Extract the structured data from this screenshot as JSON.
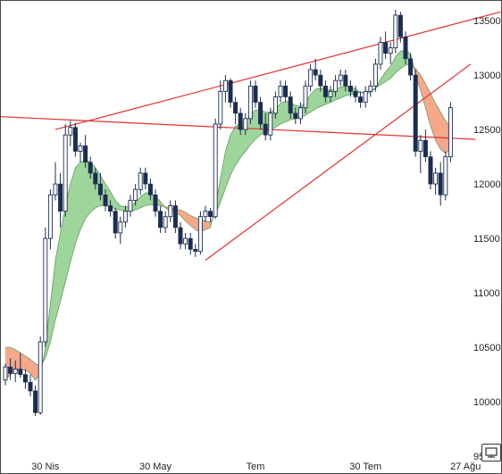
{
  "chart_data": {
    "type": "candlestick",
    "title": "",
    "xlabel": "",
    "ylabel": "",
    "ylim": [
      9460,
      13640
    ],
    "y_ticks": [
      9500,
      10000,
      10500,
      11000,
      11500,
      12000,
      12500,
      13000,
      13500
    ],
    "x_tick_labels": [
      {
        "label": "30 Nis",
        "index": 8
      },
      {
        "label": "30 May",
        "index": 30
      },
      {
        "label": "Tem",
        "index": 50
      },
      {
        "label": "30 Tem",
        "index": 72
      },
      {
        "label": "27 Ağu",
        "index": 92
      }
    ],
    "colors": {
      "candle": "#1c2d52",
      "band_up": "#9ed59a",
      "band_down": "#f6a98a",
      "band_line": "#3f7f3f",
      "trendline": "#e23030"
    },
    "candles": [
      [
        10200,
        10350,
        10150,
        10320
      ],
      [
        10320,
        10400,
        10200,
        10260
      ],
      [
        10260,
        10380,
        10180,
        10300
      ],
      [
        10300,
        10450,
        10220,
        10250
      ],
      [
        10250,
        10300,
        10120,
        10180
      ],
      [
        10180,
        10250,
        10050,
        10100
      ],
      [
        10100,
        10150,
        9870,
        9900
      ],
      [
        9900,
        10600,
        9880,
        10550
      ],
      [
        10550,
        11600,
        10500,
        11500
      ],
      [
        11500,
        11950,
        11400,
        11900
      ],
      [
        11900,
        12200,
        11850,
        12000
      ],
      [
        12000,
        12100,
        11600,
        11750
      ],
      [
        11750,
        12550,
        11700,
        12450
      ],
      [
        12450,
        12580,
        12350,
        12520
      ],
      [
        12520,
        12560,
        12250,
        12300
      ],
      [
        12300,
        12380,
        12200,
        12350
      ],
      [
        12350,
        12450,
        12150,
        12200
      ],
      [
        12200,
        12250,
        12050,
        12100
      ],
      [
        12100,
        12150,
        11950,
        12000
      ],
      [
        12000,
        12100,
        11850,
        11900
      ],
      [
        11900,
        11950,
        11750,
        11800
      ],
      [
        11800,
        11850,
        11700,
        11750
      ],
      [
        11750,
        11780,
        11500,
        11550
      ],
      [
        11550,
        11700,
        11450,
        11650
      ],
      [
        11650,
        11800,
        11600,
        11750
      ],
      [
        11750,
        11900,
        11700,
        11850
      ],
      [
        11850,
        12000,
        11800,
        11950
      ],
      [
        11950,
        12150,
        11900,
        12100
      ],
      [
        12100,
        12150,
        11950,
        12000
      ],
      [
        12000,
        12050,
        11850,
        11900
      ],
      [
        11900,
        11950,
        11700,
        11750
      ],
      [
        11750,
        11800,
        11550,
        11600
      ],
      [
        11600,
        11750,
        11550,
        11700
      ],
      [
        11700,
        11850,
        11650,
        11800
      ],
      [
        11800,
        11850,
        11550,
        11600
      ],
      [
        11600,
        11650,
        11400,
        11450
      ],
      [
        11450,
        11550,
        11400,
        11500
      ],
      [
        11500,
        11550,
        11350,
        11400
      ],
      [
        11400,
        11450,
        11330,
        11380
      ],
      [
        11380,
        11750,
        11350,
        11700
      ],
      [
        11700,
        11800,
        11650,
        11750
      ],
      [
        11750,
        11780,
        11650,
        11700
      ],
      [
        11700,
        12600,
        11680,
        12550
      ],
      [
        12550,
        12950,
        12500,
        12850
      ],
      [
        12850,
        13000,
        12750,
        12950
      ],
      [
        12950,
        12970,
        12700,
        12750
      ],
      [
        12750,
        12800,
        12550,
        12650
      ],
      [
        12650,
        12700,
        12450,
        12500
      ],
      [
        12500,
        12650,
        12450,
        12600
      ],
      [
        12600,
        12950,
        12550,
        12900
      ],
      [
        12900,
        12950,
        12700,
        12750
      ],
      [
        12750,
        12800,
        12500,
        12550
      ],
      [
        12550,
        12650,
        12400,
        12450
      ],
      [
        12450,
        12700,
        12400,
        12650
      ],
      [
        12650,
        12850,
        12600,
        12800
      ],
      [
        12800,
        12950,
        12750,
        12900
      ],
      [
        12900,
        12950,
        12750,
        12800
      ],
      [
        12800,
        12850,
        12600,
        12650
      ],
      [
        12650,
        12700,
        12550,
        12600
      ],
      [
        12600,
        12750,
        12550,
        12700
      ],
      [
        12700,
        12950,
        12650,
        12900
      ],
      [
        12900,
        13100,
        12850,
        13050
      ],
      [
        13050,
        13150,
        12950,
        13000
      ],
      [
        13000,
        13050,
        12850,
        12900
      ],
      [
        12900,
        12950,
        12750,
        12800
      ],
      [
        12800,
        12900,
        12750,
        12850
      ],
      [
        12850,
        13000,
        12800,
        12950
      ],
      [
        12950,
        13050,
        12900,
        13000
      ],
      [
        13000,
        13050,
        12850,
        12900
      ],
      [
        12900,
        12950,
        12800,
        12850
      ],
      [
        12850,
        12900,
        12750,
        12800
      ],
      [
        12800,
        12850,
        12700,
        12750
      ],
      [
        12750,
        12900,
        12700,
        12850
      ],
      [
        12850,
        12950,
        12800,
        12900
      ],
      [
        12900,
        13150,
        12850,
        13100
      ],
      [
        13100,
        13350,
        13050,
        13300
      ],
      [
        13300,
        13400,
        13150,
        13200
      ],
      [
        13200,
        13300,
        13100,
        13250
      ],
      [
        13250,
        13600,
        13200,
        13550
      ],
      [
        13550,
        13580,
        13300,
        13350
      ],
      [
        13350,
        13400,
        13100,
        13150
      ],
      [
        13150,
        13200,
        12950,
        13000
      ],
      [
        13000,
        13050,
        12250,
        12300
      ],
      [
        12300,
        12450,
        12100,
        12400
      ],
      [
        12400,
        12500,
        12200,
        12250
      ],
      [
        12250,
        12300,
        11950,
        12000
      ],
      [
        12000,
        12150,
        11900,
        12100
      ],
      [
        12100,
        12200,
        11800,
        11900
      ],
      [
        11900,
        12300,
        11850,
        12250
      ],
      [
        12250,
        12750,
        12200,
        12700
      ]
    ],
    "fast_line": [
      10200,
      10250,
      10280,
      10300,
      10290,
      10260,
      10200,
      10250,
      10500,
      10900,
      11300,
      11550,
      11800,
      12000,
      12150,
      12200,
      12220,
      12200,
      12150,
      12080,
      12000,
      11930,
      11850,
      11800,
      11790,
      11800,
      11830,
      11880,
      11920,
      11920,
      11890,
      11840,
      11780,
      11750,
      11740,
      11710,
      11660,
      11620,
      11580,
      11560,
      11580,
      11600,
      11800,
      12050,
      12300,
      12450,
      12530,
      12560,
      12580,
      12640,
      12680,
      12680,
      12660,
      12660,
      12690,
      12740,
      12760,
      12750,
      12720,
      12710,
      12750,
      12820,
      12870,
      12880,
      12870,
      12860,
      12870,
      12890,
      12900,
      12890,
      12870,
      12840,
      12830,
      12840,
      12880,
      12960,
      13030,
      13080,
      13170,
      13220,
      13230,
      13200,
      13000,
      12860,
      12700,
      12530,
      12400,
      12320,
      12280,
      12320
    ],
    "slow_line": [
      10500,
      10500,
      10480,
      10450,
      10420,
      10390,
      10350,
      10330,
      10400,
      10550,
      10750,
      10920,
      11100,
      11280,
      11450,
      11580,
      11680,
      11740,
      11780,
      11800,
      11800,
      11790,
      11770,
      11760,
      11750,
      11750,
      11760,
      11780,
      11800,
      11810,
      11810,
      11800,
      11790,
      11780,
      11770,
      11760,
      11740,
      11710,
      11690,
      11670,
      11660,
      11650,
      11720,
      11830,
      11960,
      12080,
      12170,
      12240,
      12300,
      12360,
      12410,
      12450,
      12480,
      12500,
      12520,
      12550,
      12570,
      12590,
      12600,
      12610,
      12630,
      12660,
      12690,
      12710,
      12730,
      12750,
      12770,
      12790,
      12810,
      12820,
      12830,
      12840,
      12850,
      12860,
      12880,
      12910,
      12940,
      12970,
      13020,
      13060,
      13090,
      13100,
      13060,
      13000,
      12920,
      12830,
      12740,
      12660,
      12580,
      12520
    ],
    "trendlines": [
      {
        "from": [
          10,
          12500
        ],
        "to": [
          99,
          13580
        ]
      },
      {
        "from": [
          -2,
          12620
        ],
        "to": [
          94,
          12410
        ]
      },
      {
        "from": [
          40,
          11300
        ],
        "to": [
          93,
          13100
        ]
      }
    ]
  }
}
